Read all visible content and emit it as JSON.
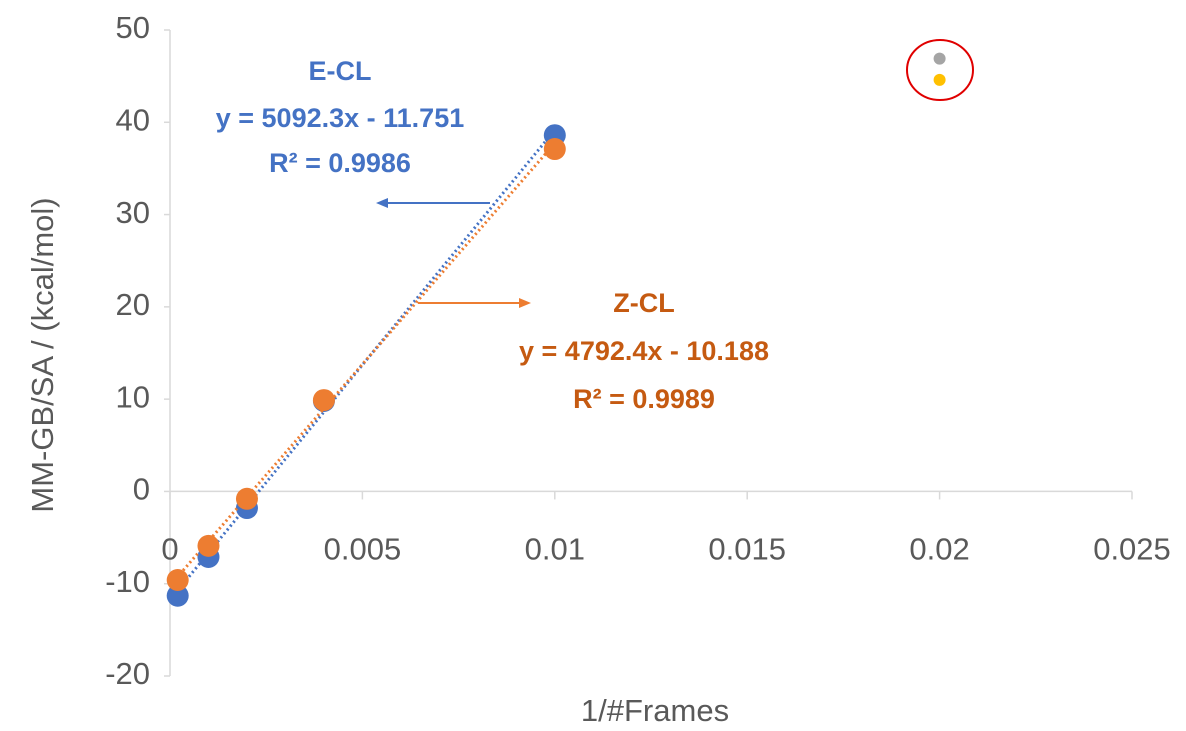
{
  "chart_data": {
    "type": "scatter",
    "x_label": "1/#Frames",
    "y_label": "MM-GB/SA / (kcal/mol)",
    "xlim": [
      0,
      0.025
    ],
    "ylim": [
      -20,
      50
    ],
    "xticks": [
      0,
      0.005,
      0.01,
      0.015,
      0.02,
      0.025
    ],
    "yticks": [
      -20,
      -10,
      0,
      10,
      20,
      30,
      40,
      50
    ],
    "series": [
      {
        "name": "E-CL",
        "color": "#4472c4",
        "label_color": "#4472c4",
        "x": [
          0.0002,
          0.001,
          0.002,
          0.004,
          0.01
        ],
        "values": [
          -11.3,
          -7.1,
          -1.8,
          9.8,
          38.6
        ],
        "trendline": {
          "slope": 5092.3,
          "intercept": -11.751,
          "equation": "y = 5092.3x - 11.751",
          "r2": "R² = 0.9986"
        }
      },
      {
        "name": "Z-CL",
        "color": "#ed7d31",
        "label_color": "#c55a11",
        "x": [
          0.0002,
          0.001,
          0.002,
          0.004,
          0.01
        ],
        "values": [
          -9.6,
          -5.9,
          -0.8,
          9.9,
          37.1
        ],
        "trendline": {
          "slope": 4792.4,
          "intercept": -10.188,
          "equation": "y = 4792.4x - 10.188",
          "r2": "R² = 0.9989"
        }
      },
      {
        "color": "#a5a5a5",
        "x": [
          0.02
        ],
        "values": [
          46.9
        ]
      },
      {
        "color": "#ffc000",
        "x": [
          0.02
        ],
        "values": [
          44.6
        ]
      }
    ]
  }
}
